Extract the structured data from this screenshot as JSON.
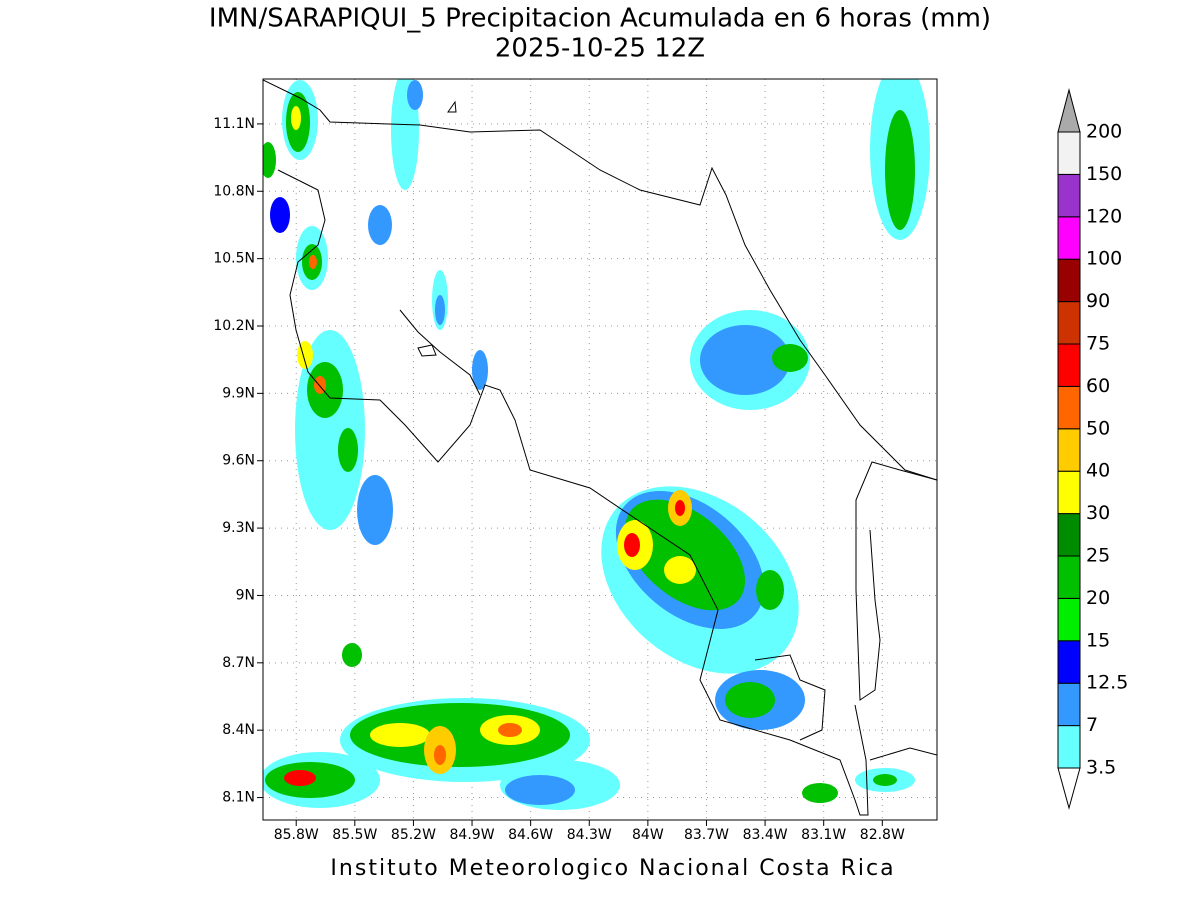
{
  "title": "IMN/SARAPIQUI_5 Precipitacion Acumulada en 6 horas (mm)",
  "subtitle": "2025-10-25 12Z",
  "footer": "Instituto Meteorologico Nacional Costa Rica",
  "map": {
    "lon_range": [
      -85.97,
      -82.52
    ],
    "lat_range": [
      8.0,
      11.3
    ],
    "lon_ticks": [
      {
        "value": -85.8,
        "label": "85.8W"
      },
      {
        "value": -85.5,
        "label": "85.5W"
      },
      {
        "value": -85.2,
        "label": "85.2W"
      },
      {
        "value": -84.9,
        "label": "84.9W"
      },
      {
        "value": -84.6,
        "label": "84.6W"
      },
      {
        "value": -84.3,
        "label": "84.3W"
      },
      {
        "value": -84.0,
        "label": "84W"
      },
      {
        "value": -83.7,
        "label": "83.7W"
      },
      {
        "value": -83.4,
        "label": "83.4W"
      },
      {
        "value": -83.1,
        "label": "83.1W"
      },
      {
        "value": -82.8,
        "label": "82.8W"
      }
    ],
    "lat_ticks": [
      {
        "value": 11.1,
        "label": "11.1N"
      },
      {
        "value": 10.8,
        "label": "10.8N"
      },
      {
        "value": 10.5,
        "label": "10.5N"
      },
      {
        "value": 10.2,
        "label": "10.2N"
      },
      {
        "value": 9.9,
        "label": "9.9N"
      },
      {
        "value": 9.6,
        "label": "9.6N"
      },
      {
        "value": 9.3,
        "label": "9.3N"
      },
      {
        "value": 9.0,
        "label": "9N"
      },
      {
        "value": 8.7,
        "label": "8.7N"
      },
      {
        "value": 8.4,
        "label": "8.4N"
      },
      {
        "value": 8.1,
        "label": "8.1N"
      }
    ],
    "grid": true
  },
  "colorbar": {
    "levels": [
      3.5,
      7,
      12.5,
      15,
      20,
      25,
      30,
      40,
      50,
      60,
      75,
      90,
      100,
      120,
      150,
      200
    ],
    "colors": [
      "#66ffff",
      "#3399ff",
      "#0000ff",
      "#00ee00",
      "#00c000",
      "#008c00",
      "#ffff00",
      "#ffcc00",
      "#ff6600",
      "#ff0000",
      "#cc3300",
      "#990000",
      "#ff00ff",
      "#9933cc",
      "#f2f2f2"
    ],
    "over_color": "#aaaaaa",
    "under_color": "#ffffff"
  }
}
